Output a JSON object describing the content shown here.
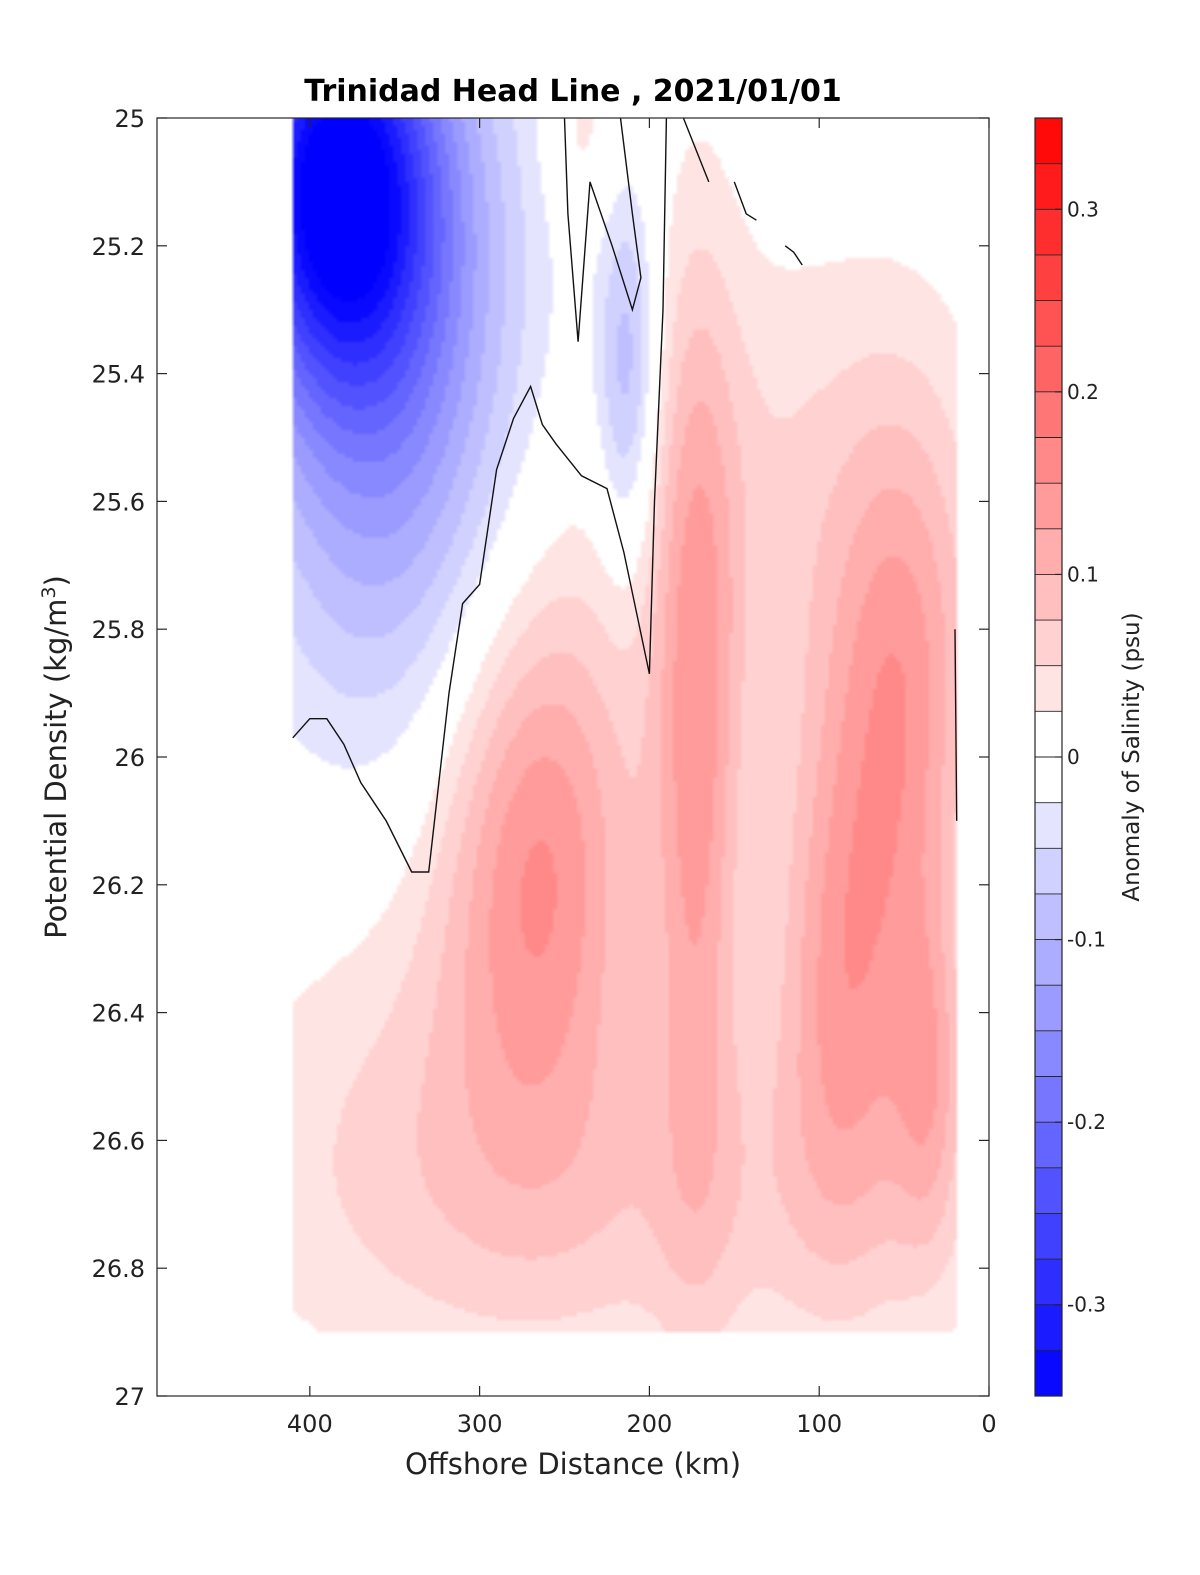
{
  "chart_data": {
    "type": "heatmap",
    "subtype": "filled-contour",
    "title": "Trinidad Head Line , 2021/01/01",
    "xlabel": "Offshore Distance (km)",
    "ylabel": "Potential Density (kg/m³)",
    "ylabel_main": "Potential Density (kg/m",
    "ylabel_sup": "3",
    "ylabel_close": ")",
    "xlim": [
      490,
      0
    ],
    "ylim": [
      25,
      27
    ],
    "x_reversed": true,
    "y_reversed": true,
    "xticks": [
      400,
      300,
      200,
      100,
      0
    ],
    "xtick_labels": [
      "400",
      "300",
      "200",
      "100",
      "0"
    ],
    "yticks": [
      25,
      25.2,
      25.4,
      25.6,
      25.8,
      26,
      26.2,
      26.4,
      26.6,
      26.8,
      27
    ],
    "ytick_labels": [
      "25",
      "25.2",
      "25.4",
      "25.6",
      "25.8",
      "26",
      "26.2",
      "26.4",
      "26.6",
      "26.8",
      "27"
    ],
    "colorbar": {
      "label": "Anomaly of Salinity (psu)",
      "range": [
        -0.35,
        0.35
      ],
      "step": 0.025,
      "ticks": [
        0.3,
        0.2,
        0.1,
        0,
        -0.1,
        -0.2,
        -0.3
      ],
      "tick_labels": [
        "0.3",
        "0.2",
        "0.1",
        "0",
        "-0.1",
        "-0.2",
        "-0.3"
      ],
      "colormap": "blue-white-red",
      "neg_color": "#0000ff",
      "pos_color": "#ff0000"
    },
    "data_extent": {
      "x": [
        410,
        20
      ],
      "y": [
        25,
        26.9
      ]
    },
    "grid": false,
    "features": [
      {
        "kind": "low-salinity core",
        "x": 385,
        "y": 25.1,
        "anomaly": -0.3,
        "sx": 40,
        "sy": 0.22
      },
      {
        "kind": "low-salinity core",
        "x": 355,
        "y": 25.35,
        "anomaly": -0.16,
        "sx": 55,
        "sy": 0.4
      },
      {
        "kind": "low-salinity core",
        "x": 213,
        "y": 25.4,
        "anomaly": -0.1,
        "sx": 13,
        "sy": 0.2
      },
      {
        "kind": "high-salinity core",
        "x": 265,
        "y": 26.15,
        "anomaly": 0.14,
        "sx": 40,
        "sy": 0.3
      },
      {
        "kind": "high-salinity core",
        "x": 172,
        "y": 26.0,
        "anomaly": 0.12,
        "sx": 18,
        "sy": 0.5
      },
      {
        "kind": "high-salinity core",
        "x": 85,
        "y": 26.35,
        "anomaly": 0.12,
        "sx": 30,
        "sy": 0.3
      },
      {
        "kind": "high-salinity core",
        "x": 50,
        "y": 25.9,
        "anomaly": 0.11,
        "sx": 30,
        "sy": 0.3
      },
      {
        "kind": "high-salinity core",
        "x": 35,
        "y": 26.5,
        "anomaly": 0.08,
        "sx": 15,
        "sy": 0.2
      },
      {
        "kind": "high-salinity core",
        "x": 120,
        "y": 25.6,
        "anomaly": 0.05,
        "sx": 80,
        "sy": 0.3
      },
      {
        "kind": "high-salinity core",
        "x": 240,
        "y": 25.02,
        "anomaly": 0.04,
        "sx": 15,
        "sy": 0.1
      },
      {
        "kind": "high-salinity core",
        "x": 330,
        "y": 26.5,
        "anomaly": 0.04,
        "sx": 80,
        "sy": 0.3
      },
      {
        "kind": "high-salinity core",
        "x": 200,
        "y": 26.7,
        "anomaly": 0.05,
        "sx": 150,
        "sy": 0.2
      }
    ],
    "zero_contours": [
      [
        [
          410,
          25.97
        ],
        [
          400,
          25.94
        ],
        [
          390,
          25.94
        ],
        [
          380,
          25.98
        ],
        [
          370,
          26.04
        ],
        [
          355,
          26.1
        ],
        [
          340,
          26.18
        ],
        [
          330,
          26.18
        ],
        [
          318,
          25.9
        ],
        [
          310,
          25.76
        ],
        [
          300,
          25.73
        ],
        [
          290,
          25.55
        ],
        [
          280,
          25.47
        ],
        [
          270,
          25.42
        ],
        [
          263,
          25.48
        ],
        [
          255,
          25.51
        ],
        [
          240,
          25.56
        ],
        [
          225,
          25.58
        ],
        [
          215,
          25.68
        ],
        [
          200,
          25.87
        ],
        [
          197,
          25.6
        ],
        [
          192,
          25.3
        ],
        [
          190,
          25.0
        ]
      ],
      [
        [
          217,
          25.0
        ],
        [
          210,
          25.15
        ],
        [
          205,
          25.25
        ],
        [
          210,
          25.3
        ],
        [
          222,
          25.2
        ],
        [
          235,
          25.1
        ],
        [
          242,
          25.35
        ],
        [
          248,
          25.15
        ],
        [
          250,
          25.0
        ]
      ],
      [
        [
          180,
          25.0
        ],
        [
          168,
          25.08
        ],
        [
          165,
          25.1
        ]
      ],
      [
        [
          150,
          25.1
        ],
        [
          143,
          25.15
        ],
        [
          137,
          25.16
        ]
      ],
      [
        [
          120,
          25.2
        ],
        [
          115,
          25.21
        ],
        [
          110,
          25.23
        ]
      ],
      [
        [
          20,
          25.8
        ],
        [
          19,
          26.1
        ]
      ]
    ]
  }
}
